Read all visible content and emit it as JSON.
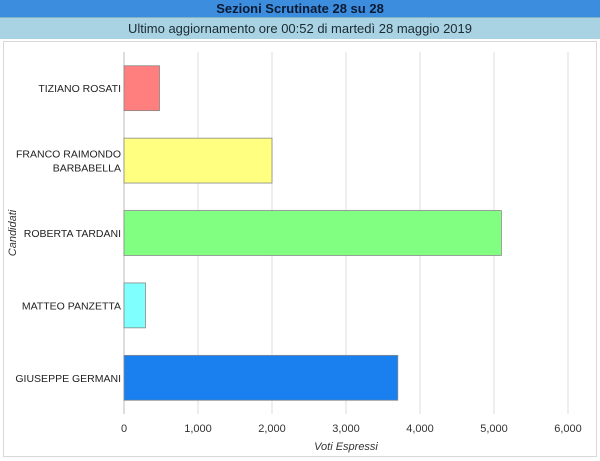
{
  "header": {
    "title": "Sezioni Scrutinate 28 su 28",
    "subtitle": "Ultimo aggiornamento ore 00:52 di martedì 28 maggio 2019"
  },
  "chart_data": {
    "type": "bar",
    "orientation": "horizontal",
    "ylabel": "Candidati",
    "xlabel": "Voti Espressi",
    "xlim": [
      0,
      6000
    ],
    "xticks": [
      0,
      1000,
      2000,
      3000,
      4000,
      5000,
      6000
    ],
    "xtick_labels": [
      "0",
      "1,000",
      "2,000",
      "3,000",
      "4,000",
      "5,000",
      "6,000"
    ],
    "grid": true,
    "categories": [
      [
        "TIZIANO ROSATI"
      ],
      [
        "FRANCO RAIMONDO",
        "BARBABELLA"
      ],
      [
        "ROBERTA TARDANI"
      ],
      [
        "MATTEO PANZETTA"
      ],
      [
        "GIUSEPPE GERMANI"
      ]
    ],
    "values": [
      480,
      2000,
      5100,
      290,
      3700
    ],
    "colors": [
      "#ff7f7f",
      "#ffff80",
      "#80ff80",
      "#80ffff",
      "#1a7fef"
    ]
  }
}
